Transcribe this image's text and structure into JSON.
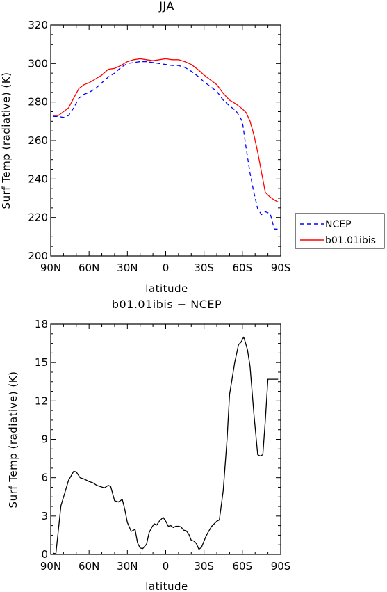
{
  "chart_data": [
    {
      "type": "line",
      "title": "JJA",
      "xlabel": "latitude",
      "ylabel": "Surf Temp (radiative) (K)",
      "xlim": [
        90,
        -90
      ],
      "ylim": [
        200,
        320
      ],
      "x_ticks": [
        90,
        60,
        30,
        0,
        -30,
        -60,
        -90
      ],
      "x_tick_labels": [
        "90N",
        "60N",
        "30N",
        "0",
        "30S",
        "60S",
        "90S"
      ],
      "y_ticks": [
        200,
        220,
        240,
        260,
        280,
        300,
        320
      ],
      "y_tick_labels": [
        "200",
        "220",
        "240",
        "260",
        "280",
        "300",
        "320"
      ],
      "legend": {
        "position": "outside-right",
        "entries": [
          "NCEP",
          "b01.01ibis"
        ]
      },
      "series": [
        {
          "name": "NCEP",
          "color": "#0000ff",
          "dash": "dashed",
          "x": [
            88,
            84,
            80,
            76,
            72,
            68,
            64,
            60,
            55,
            50,
            45,
            40,
            35,
            30,
            25,
            20,
            15,
            10,
            5,
            0,
            -5,
            -10,
            -15,
            -20,
            -25,
            -30,
            -35,
            -40,
            -45,
            -50,
            -55,
            -60,
            -63,
            -66,
            -69,
            -72,
            -75,
            -78,
            -80,
            -82,
            -85,
            -88
          ],
          "y": [
            272.5,
            272.5,
            272,
            273,
            277,
            282,
            284,
            285,
            287,
            290,
            293,
            295,
            298,
            300,
            300.5,
            301,
            301,
            300.5,
            300,
            299.5,
            299,
            299,
            298,
            296,
            293.5,
            290.5,
            288,
            285.5,
            281,
            278,
            275.5,
            270,
            256,
            243,
            233,
            224.5,
            221.5,
            223,
            222.5,
            221.5,
            214,
            214
          ]
        },
        {
          "name": "b01.01ibis",
          "color": "#ff0000",
          "dash": "solid",
          "x": [
            88,
            84,
            80,
            76,
            72,
            68,
            64,
            60,
            55,
            50,
            45,
            40,
            35,
            30,
            25,
            20,
            15,
            10,
            5,
            0,
            -5,
            -10,
            -15,
            -20,
            -25,
            -30,
            -35,
            -40,
            -45,
            -50,
            -55,
            -60,
            -63,
            -66,
            -69,
            -72,
            -75,
            -78,
            -81,
            -84,
            -88
          ],
          "y": [
            273,
            273,
            275,
            277,
            282,
            287,
            289,
            290,
            292,
            294,
            297,
            297.5,
            299,
            301,
            302,
            302.5,
            302,
            301.5,
            302,
            302.5,
            302,
            302,
            301,
            299.5,
            297,
            294,
            291.5,
            289,
            284.5,
            281,
            279,
            276.5,
            274.5,
            270,
            263,
            254,
            243.5,
            233,
            231,
            229.5,
            228
          ]
        }
      ]
    },
    {
      "type": "line",
      "title": "b01.01ibis − NCEP",
      "xlabel": "latitude",
      "ylabel": "Surf Temp (radiative) (K)",
      "xlim": [
        90,
        -90
      ],
      "ylim": [
        0,
        18
      ],
      "x_ticks": [
        90,
        60,
        30,
        0,
        -30,
        -60,
        -90
      ],
      "x_tick_labels": [
        "90N",
        "60N",
        "30N",
        "0",
        "30S",
        "60S",
        "90S"
      ],
      "y_ticks": [
        0,
        3,
        6,
        9,
        12,
        15,
        18
      ],
      "y_tick_labels": [
        "0",
        "3",
        "6",
        "9",
        "12",
        "15",
        "18"
      ],
      "series": [
        {
          "color": "#000000",
          "dash": "solid",
          "x": [
            88,
            86,
            82,
            76,
            72,
            70,
            67,
            64,
            60,
            57,
            54,
            51,
            48,
            45,
            43,
            40,
            37,
            34,
            32,
            30,
            27,
            24,
            22,
            20,
            18,
            15,
            13,
            11,
            9,
            7,
            5,
            2,
            0,
            -2,
            -4,
            -6,
            -8,
            -10,
            -12,
            -14,
            -16,
            -18,
            -20,
            -22,
            -24,
            -26,
            -28,
            -31,
            -33,
            -36,
            -38,
            -40,
            -42,
            -45,
            -48,
            -50,
            -54,
            -57,
            -59,
            -61,
            -62,
            -64,
            -66,
            -69,
            -72,
            -74,
            -76,
            -78,
            -80,
            -82,
            -84,
            -86,
            -88
          ],
          "y": [
            0.1,
            0.05,
            3.8,
            5.8,
            6.5,
            6.45,
            6.0,
            5.9,
            5.7,
            5.6,
            5.4,
            5.3,
            5.2,
            5.4,
            5.3,
            4.2,
            4.1,
            4.3,
            3.5,
            2.5,
            1.8,
            1.95,
            0.9,
            0.5,
            0.45,
            0.8,
            1.7,
            2.1,
            2.4,
            2.3,
            2.6,
            2.9,
            2.6,
            2.2,
            2.25,
            2.1,
            2.2,
            2.2,
            2.15,
            1.9,
            1.85,
            1.6,
            1.1,
            1.05,
            0.85,
            0.4,
            0.55,
            1.3,
            1.7,
            2.2,
            2.4,
            2.6,
            2.7,
            5.0,
            9.0,
            12.5,
            15.0,
            16.4,
            16.6,
            17.0,
            16.7,
            16.0,
            14.7,
            11.0,
            7.8,
            7.7,
            7.8,
            10.5,
            13.7,
            13.7,
            13.7,
            13.7,
            13.7
          ]
        }
      ]
    }
  ]
}
